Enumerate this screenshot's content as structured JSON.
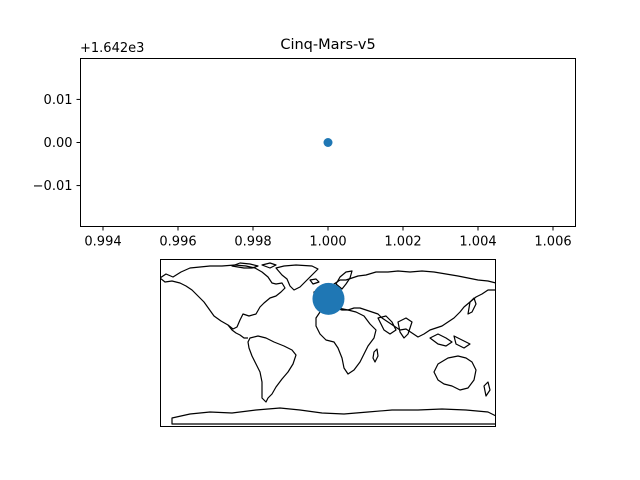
{
  "chart_data": [
    {
      "type": "scatter",
      "title": "Cinq-Mars-v5",
      "y_offset_label": "+1.642e3",
      "xlim": [
        0.9934,
        1.0066
      ],
      "ylim": [
        -0.0195,
        0.0195
      ],
      "x_ticks": [
        0.994,
        0.996,
        0.998,
        1.0,
        1.002,
        1.004,
        1.006
      ],
      "x_tick_labels": [
        "0.994",
        "0.996",
        "0.998",
        "1.000",
        "1.002",
        "1.004",
        "1.006"
      ],
      "y_ticks": [
        0.01,
        0.0,
        -0.01
      ],
      "y_tick_labels": [
        "0.01",
        "0.00",
        "−0.01"
      ],
      "points": [
        {
          "x": 1.0,
          "y": 0.0
        }
      ],
      "point_color": "#1f77b4",
      "grid": false,
      "legend": "none"
    },
    {
      "type": "scatter",
      "map": "world-coastlines-plate-carree",
      "xlim": [
        -180,
        180
      ],
      "ylim": [
        -90,
        90
      ],
      "points": [
        {
          "lon": 0.5,
          "lat": 47.3
        }
      ],
      "point_color": "#1f77b4"
    }
  ]
}
